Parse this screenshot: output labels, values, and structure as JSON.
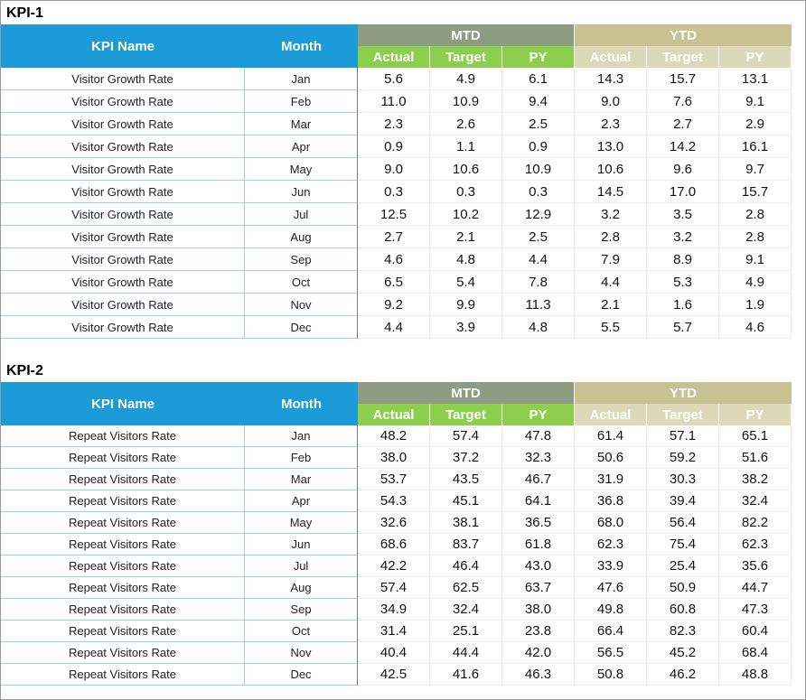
{
  "tables": [
    {
      "title": "KPI-1",
      "headers": {
        "kpi_name": "KPI Name",
        "month": "Month",
        "mtd": "MTD",
        "ytd": "YTD",
        "mtd_columns": [
          "Actual",
          "Target",
          "PY"
        ],
        "ytd_columns": [
          "Actual",
          "Target",
          "PY"
        ]
      },
      "rows": [
        [
          "Visitor Growth Rate",
          "Jan",
          "5.6",
          "4.9",
          "6.1",
          "14.3",
          "15.7",
          "13.1"
        ],
        [
          "Visitor Growth Rate",
          "Feb",
          "11.0",
          "10.9",
          "9.4",
          "9.0",
          "7.6",
          "9.1"
        ],
        [
          "Visitor Growth Rate",
          "Mar",
          "2.3",
          "2.6",
          "2.5",
          "2.3",
          "2.7",
          "2.9"
        ],
        [
          "Visitor Growth Rate",
          "Apr",
          "0.9",
          "1.1",
          "0.9",
          "13.0",
          "14.2",
          "16.1"
        ],
        [
          "Visitor Growth Rate",
          "May",
          "9.0",
          "10.6",
          "10.9",
          "10.6",
          "9.6",
          "9.7"
        ],
        [
          "Visitor Growth Rate",
          "Jun",
          "0.3",
          "0.3",
          "0.3",
          "14.5",
          "17.0",
          "15.7"
        ],
        [
          "Visitor Growth Rate",
          "Jul",
          "12.5",
          "10.2",
          "12.9",
          "3.2",
          "3.5",
          "2.8"
        ],
        [
          "Visitor Growth Rate",
          "Aug",
          "2.7",
          "2.1",
          "2.5",
          "2.8",
          "3.2",
          "2.8"
        ],
        [
          "Visitor Growth Rate",
          "Sep",
          "4.6",
          "4.8",
          "4.4",
          "7.9",
          "8.9",
          "9.1"
        ],
        [
          "Visitor Growth Rate",
          "Oct",
          "6.5",
          "5.4",
          "7.8",
          "4.4",
          "5.3",
          "4.9"
        ],
        [
          "Visitor Growth Rate",
          "Nov",
          "9.2",
          "9.9",
          "11.3",
          "2.1",
          "1.6",
          "1.9"
        ],
        [
          "Visitor Growth Rate",
          "Dec",
          "4.4",
          "3.9",
          "4.8",
          "5.5",
          "5.7",
          "4.6"
        ]
      ]
    },
    {
      "title": "KPI-2",
      "headers": {
        "kpi_name": "KPI Name",
        "month": "Month",
        "mtd": "MTD",
        "ytd": "YTD",
        "mtd_columns": [
          "Actual",
          "Target",
          "PY"
        ],
        "ytd_columns": [
          "Actual",
          "Target",
          "PY"
        ]
      },
      "rows": [
        [
          "Repeat Visitors Rate",
          "Jan",
          "48.2",
          "57.4",
          "47.8",
          "61.4",
          "57.1",
          "65.1"
        ],
        [
          "Repeat Visitors Rate",
          "Feb",
          "38.0",
          "37.2",
          "32.3",
          "50.6",
          "59.2",
          "51.6"
        ],
        [
          "Repeat Visitors Rate",
          "Mar",
          "53.7",
          "43.5",
          "46.7",
          "31.9",
          "30.3",
          "38.2"
        ],
        [
          "Repeat Visitors Rate",
          "Apr",
          "54.3",
          "45.1",
          "64.1",
          "36.8",
          "39.4",
          "32.4"
        ],
        [
          "Repeat Visitors Rate",
          "May",
          "32.6",
          "38.1",
          "36.5",
          "68.0",
          "56.4",
          "82.2"
        ],
        [
          "Repeat Visitors Rate",
          "Jun",
          "68.6",
          "83.7",
          "61.8",
          "62.3",
          "75.4",
          "62.3"
        ],
        [
          "Repeat Visitors Rate",
          "Jul",
          "42.2",
          "46.4",
          "43.0",
          "33.9",
          "25.4",
          "35.6"
        ],
        [
          "Repeat Visitors Rate",
          "Aug",
          "57.4",
          "62.5",
          "63.7",
          "47.6",
          "50.9",
          "44.7"
        ],
        [
          "Repeat Visitors Rate",
          "Sep",
          "34.9",
          "32.4",
          "38.0",
          "49.8",
          "60.8",
          "47.3"
        ],
        [
          "Repeat Visitors Rate",
          "Oct",
          "31.4",
          "25.1",
          "23.8",
          "66.4",
          "82.3",
          "60.4"
        ],
        [
          "Repeat Visitors Rate",
          "Nov",
          "40.4",
          "44.4",
          "42.0",
          "56.5",
          "45.2",
          "68.4"
        ],
        [
          "Repeat Visitors Rate",
          "Dec",
          "42.5",
          "41.6",
          "46.3",
          "50.8",
          "46.2",
          "48.8"
        ]
      ]
    }
  ]
}
